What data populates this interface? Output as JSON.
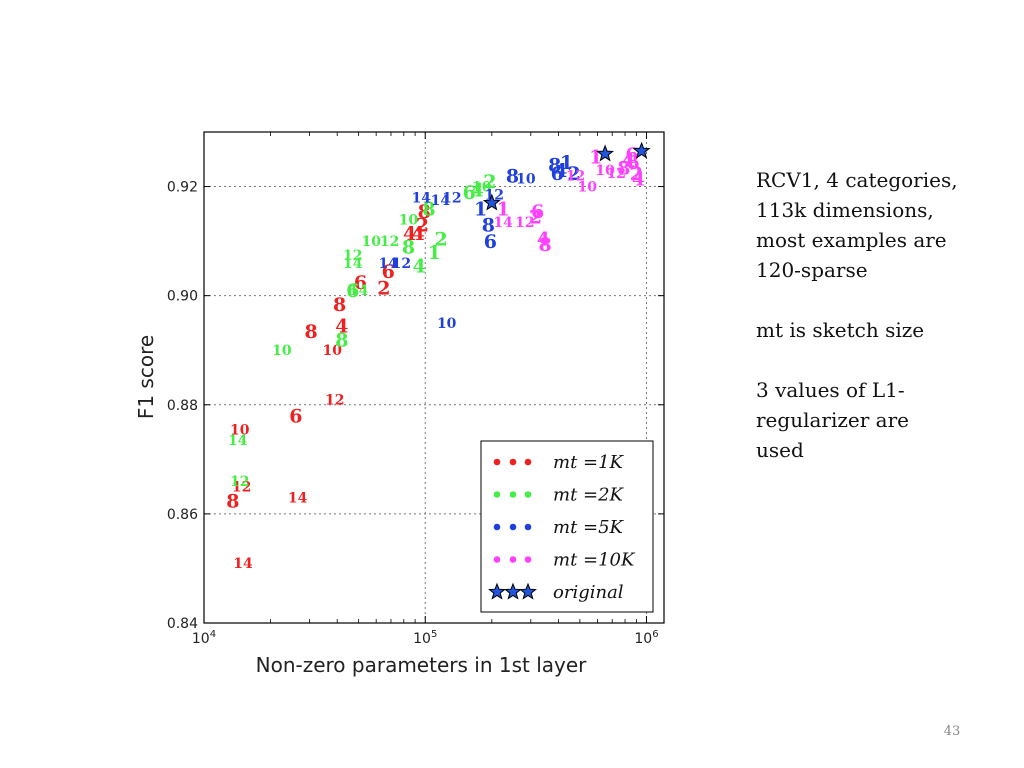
{
  "slide": {
    "notes": [
      [
        "RCV1, 4 categories,",
        "113k dimensions,",
        "most examples are",
        "120-sparse"
      ],
      [
        "mt is sketch size"
      ],
      [
        "3 values of L1-",
        "regularizer are",
        "used"
      ]
    ],
    "page_number": "43"
  },
  "colors": {
    "mt_1k": "#ee2020",
    "mt_2k": "#44ee44",
    "mt_5k": "#2040dd",
    "mt_10k": "#ff40ff",
    "original": "#2255dd"
  },
  "chart_data": {
    "type": "scatter",
    "title": "",
    "xlabel": "Non-zero parameters in 1st layer",
    "ylabel": "F1 score",
    "xscale": "log",
    "xlim": [
      10000,
      1200000
    ],
    "ylim": [
      0.84,
      0.93
    ],
    "xticks": [
      10000,
      100000,
      1000000
    ],
    "xtick_labels": [
      [
        "10",
        "4"
      ],
      [
        "10",
        "5"
      ],
      [
        "10",
        "6"
      ]
    ],
    "yticks": [
      0.84,
      0.86,
      0.88,
      0.9,
      0.92
    ],
    "ytick_labels": [
      "0.84",
      "0.86",
      "0.88",
      "0.90",
      "0.92"
    ],
    "grid": true,
    "legend_position": "lower-right",
    "marker": "point label shows the hidden-layer setting",
    "series": [
      {
        "name": "mt = 1K",
        "legend_label": "mt =1K",
        "color_key": "mt_1k",
        "points": [
          {
            "x": 13500,
            "y": 0.8625,
            "label": "8"
          },
          {
            "x": 14800,
            "y": 0.865,
            "label": "12"
          },
          {
            "x": 14500,
            "y": 0.8755,
            "label": "10"
          },
          {
            "x": 15000,
            "y": 0.851,
            "label": "14"
          },
          {
            "x": 26500,
            "y": 0.863,
            "label": "14"
          },
          {
            "x": 26000,
            "y": 0.878,
            "label": "6"
          },
          {
            "x": 39000,
            "y": 0.881,
            "label": "12"
          },
          {
            "x": 38000,
            "y": 0.89,
            "label": "10"
          },
          {
            "x": 30500,
            "y": 0.8935,
            "label": "8"
          },
          {
            "x": 42000,
            "y": 0.8945,
            "label": "4"
          },
          {
            "x": 41000,
            "y": 0.8985,
            "label": "8"
          },
          {
            "x": 51000,
            "y": 0.9025,
            "label": "6"
          },
          {
            "x": 65000,
            "y": 0.9015,
            "label": "2"
          },
          {
            "x": 68000,
            "y": 0.9045,
            "label": "6"
          },
          {
            "x": 85000,
            "y": 0.9115,
            "label": "4"
          },
          {
            "x": 93000,
            "y": 0.9115,
            "label": "4"
          },
          {
            "x": 97000,
            "y": 0.913,
            "label": "2"
          },
          {
            "x": 99000,
            "y": 0.9155,
            "label": "8"
          }
        ]
      },
      {
        "name": "mt = 2K",
        "legend_label": "mt =2K",
        "color_key": "mt_2k",
        "points": [
          {
            "x": 14500,
            "y": 0.866,
            "label": "12"
          },
          {
            "x": 14200,
            "y": 0.8735,
            "label": "14"
          },
          {
            "x": 22500,
            "y": 0.89,
            "label": "10"
          },
          {
            "x": 42000,
            "y": 0.892,
            "label": "8"
          },
          {
            "x": 47000,
            "y": 0.901,
            "label": "6"
          },
          {
            "x": 50000,
            "y": 0.901,
            "label": "14"
          },
          {
            "x": 47000,
            "y": 0.906,
            "label": "14"
          },
          {
            "x": 47000,
            "y": 0.9075,
            "label": "12"
          },
          {
            "x": 57000,
            "y": 0.91,
            "label": "10"
          },
          {
            "x": 69000,
            "y": 0.91,
            "label": "12"
          },
          {
            "x": 84000,
            "y": 0.909,
            "label": "8"
          },
          {
            "x": 94000,
            "y": 0.9055,
            "label": "4"
          },
          {
            "x": 110000,
            "y": 0.908,
            "label": "1"
          },
          {
            "x": 118000,
            "y": 0.9105,
            "label": "2"
          },
          {
            "x": 84000,
            "y": 0.914,
            "label": "10"
          },
          {
            "x": 104000,
            "y": 0.916,
            "label": "8"
          },
          {
            "x": 158000,
            "y": 0.919,
            "label": "6"
          },
          {
            "x": 172000,
            "y": 0.9195,
            "label": "4"
          },
          {
            "x": 180000,
            "y": 0.92,
            "label": "10"
          },
          {
            "x": 196000,
            "y": 0.921,
            "label": "2"
          }
        ]
      },
      {
        "name": "mt = 5K",
        "legend_label": "mt =5K",
        "color_key": "mt_5k",
        "points": [
          {
            "x": 125000,
            "y": 0.895,
            "label": "10"
          },
          {
            "x": 68000,
            "y": 0.906,
            "label": "14"
          },
          {
            "x": 78000,
            "y": 0.906,
            "label": "12"
          },
          {
            "x": 96000,
            "y": 0.918,
            "label": "14"
          },
          {
            "x": 117000,
            "y": 0.9175,
            "label": "14"
          },
          {
            "x": 132000,
            "y": 0.918,
            "label": "12"
          },
          {
            "x": 178000,
            "y": 0.916,
            "label": "1"
          },
          {
            "x": 205000,
            "y": 0.9185,
            "label": "12"
          },
          {
            "x": 193000,
            "y": 0.913,
            "label": "8"
          },
          {
            "x": 197000,
            "y": 0.91,
            "label": "6"
          },
          {
            "x": 248000,
            "y": 0.922,
            "label": "8"
          },
          {
            "x": 285000,
            "y": 0.9215,
            "label": "10"
          },
          {
            "x": 385000,
            "y": 0.924,
            "label": "8"
          },
          {
            "x": 395000,
            "y": 0.9225,
            "label": "6"
          },
          {
            "x": 410000,
            "y": 0.923,
            "label": "4"
          },
          {
            "x": 435000,
            "y": 0.9245,
            "label": "1"
          },
          {
            "x": 470000,
            "y": 0.9225,
            "label": "2"
          }
        ]
      },
      {
        "name": "mt = 10K",
        "legend_label": "mt =10K",
        "color_key": "mt_10k",
        "points": [
          {
            "x": 225000,
            "y": 0.9135,
            "label": "14"
          },
          {
            "x": 225000,
            "y": 0.916,
            "label": "1"
          },
          {
            "x": 282000,
            "y": 0.9135,
            "label": "12"
          },
          {
            "x": 315000,
            "y": 0.9145,
            "label": "2"
          },
          {
            "x": 322000,
            "y": 0.9155,
            "label": "6"
          },
          {
            "x": 342000,
            "y": 0.9105,
            "label": "4"
          },
          {
            "x": 348000,
            "y": 0.9095,
            "label": "8"
          },
          {
            "x": 478000,
            "y": 0.922,
            "label": "12"
          },
          {
            "x": 540000,
            "y": 0.92,
            "label": "10"
          },
          {
            "x": 590000,
            "y": 0.9255,
            "label": "1"
          },
          {
            "x": 650000,
            "y": 0.923,
            "label": "10"
          },
          {
            "x": 730000,
            "y": 0.9225,
            "label": "12"
          },
          {
            "x": 790000,
            "y": 0.9235,
            "label": "8"
          },
          {
            "x": 830000,
            "y": 0.925,
            "label": "4"
          },
          {
            "x": 870000,
            "y": 0.9245,
            "label": "6"
          },
          {
            "x": 900000,
            "y": 0.9225,
            "label": "2"
          },
          {
            "x": 920000,
            "y": 0.9215,
            "label": "4"
          },
          {
            "x": 860000,
            "y": 0.926,
            "label": "6"
          }
        ]
      },
      {
        "name": "original",
        "legend_label": "original",
        "color_key": "original",
        "marker_type": "star",
        "points": [
          {
            "x": 200000,
            "y": 0.917
          },
          {
            "x": 650000,
            "y": 0.926
          },
          {
            "x": 950000,
            "y": 0.9265
          }
        ]
      }
    ]
  }
}
